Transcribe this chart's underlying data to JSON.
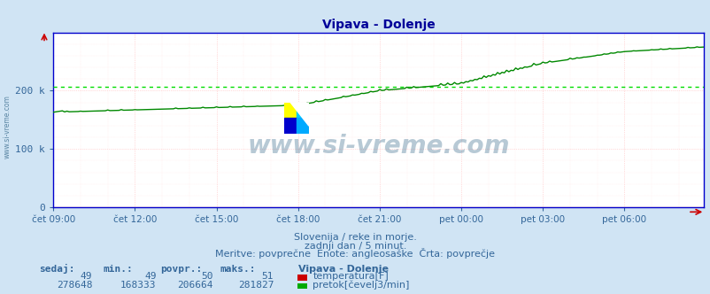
{
  "title": "Vipava - Dolenje",
  "bg_color": "#d0e4f4",
  "plot_bg_color": "#ffffff",
  "grid_color_major": "#ffbbbb",
  "grid_color_minor": "#ffdddd",
  "x_labels": [
    "čet 09:00",
    "čet 12:00",
    "čet 15:00",
    "čet 18:00",
    "čet 21:00",
    "pet 00:00",
    "pet 03:00",
    "pet 06:00"
  ],
  "x_ticks_idx": [
    0,
    36,
    72,
    108,
    144,
    180,
    216,
    252
  ],
  "n_points": 288,
  "ylim": [
    0,
    300000
  ],
  "yticks": [
    0,
    100000,
    200000
  ],
  "ytick_labels": [
    "0",
    "100 k",
    "200 k"
  ],
  "avg_line_value": 206664,
  "avg_line_color": "#00dd00",
  "temp_line_color": "#cc0000",
  "flow_line_color": "#008800",
  "watermark_text": "www.si-vreme.com",
  "watermark_color": "#336688",
  "watermark_alpha": 0.35,
  "subtitle1": "Slovenija / reke in morje.",
  "subtitle2": "zadnji dan / 5 minut.",
  "subtitle3": "Meritve: povprečne  Enote: angleosaške  Črta: povprečje",
  "subtitle_color": "#336699",
  "table_headers": [
    "sedaj:",
    "min.:",
    "povpr.:",
    "maks.:"
  ],
  "table_header_color": "#336699",
  "temp_values": [
    "49",
    "49",
    "50",
    "51"
  ],
  "flow_values": [
    "278648",
    "168333",
    "206664",
    "281827"
  ],
  "legend1": "temperatura[F]",
  "legend2": "pretok[čevelj3/min]",
  "legend_color": "#336699",
  "temp_color_box": "#cc0000",
  "flow_color_box": "#00aa00",
  "title_color": "#000099",
  "axis_label_color": "#336699",
  "spine_color": "#0000cc",
  "logo_colors": [
    "#ffff00",
    "#00ccff",
    "#0000cc",
    "#00aaff"
  ]
}
